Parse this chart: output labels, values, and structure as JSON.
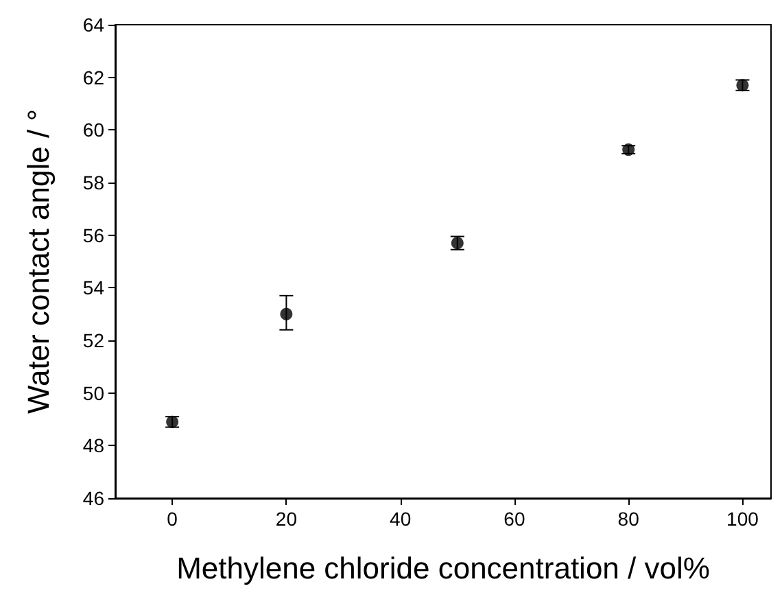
{
  "chart_data": {
    "type": "scatter",
    "xlabel": "Methylene chloride concentration / vol%",
    "ylabel": "Water contact angle / °",
    "x": [
      0,
      20,
      50,
      80,
      100
    ],
    "series": [
      {
        "color": "#000000",
        "values": [
          48.9,
          53.0,
          55.7,
          59.25,
          61.7
        ],
        "errors": [
          0.2,
          [
            52.4,
            53.7
          ],
          0.25,
          0.15,
          0.2
        ]
      }
    ],
    "xlim": [
      -10,
      105
    ],
    "xticks": [
      0,
      20,
      40,
      60,
      80,
      100
    ],
    "ylim": [
      46,
      64
    ],
    "yticks": [
      46,
      48,
      50,
      52,
      54,
      56,
      58,
      60,
      62,
      64
    ],
    "grid": false,
    "marker": "circle"
  }
}
